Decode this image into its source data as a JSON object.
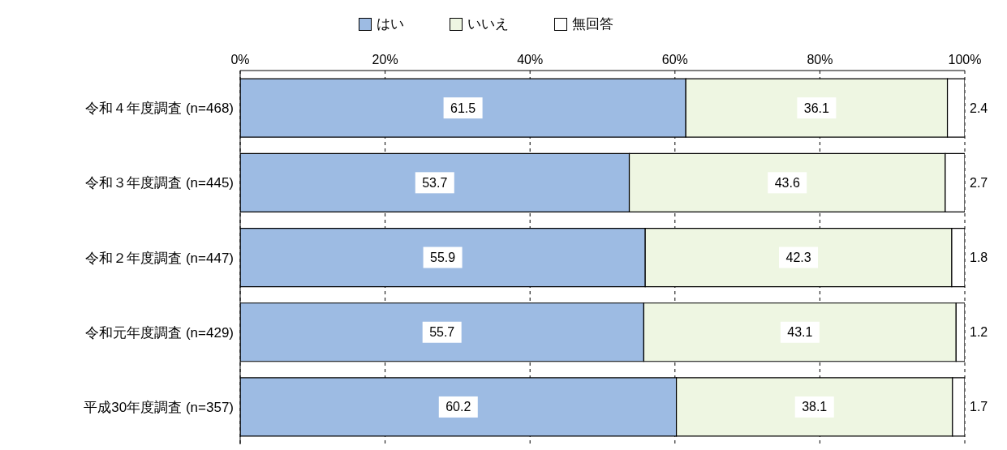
{
  "chart_data": {
    "type": "bar",
    "orientation": "horizontal",
    "stacked": true,
    "categories": [
      "令和４年度調査 (n=468)",
      "令和３年度調査 (n=445)",
      "令和２年度調査 (n=447)",
      "令和元年度調査 (n=429)",
      "平成30年度調査 (n=357)"
    ],
    "series": [
      {
        "name": "はい",
        "color": "#9dbbe3",
        "values": [
          61.5,
          53.7,
          55.9,
          55.7,
          60.2
        ]
      },
      {
        "name": "いいえ",
        "color": "#eef6e2",
        "values": [
          36.1,
          43.6,
          42.3,
          43.1,
          38.1
        ]
      },
      {
        "name": "無回答",
        "color": "#ffffff",
        "values": [
          2.4,
          2.7,
          1.8,
          1.2,
          1.7
        ]
      }
    ],
    "xlim": [
      0,
      100
    ],
    "xticks": [
      {
        "value": 0,
        "label": "0%"
      },
      {
        "value": 20,
        "label": "20%"
      },
      {
        "value": 40,
        "label": "40%"
      },
      {
        "value": 60,
        "label": "60%"
      },
      {
        "value": 80,
        "label": "80%"
      },
      {
        "value": 100,
        "label": "100%"
      }
    ],
    "grid": "x",
    "legend": "top",
    "data_labels": true
  }
}
